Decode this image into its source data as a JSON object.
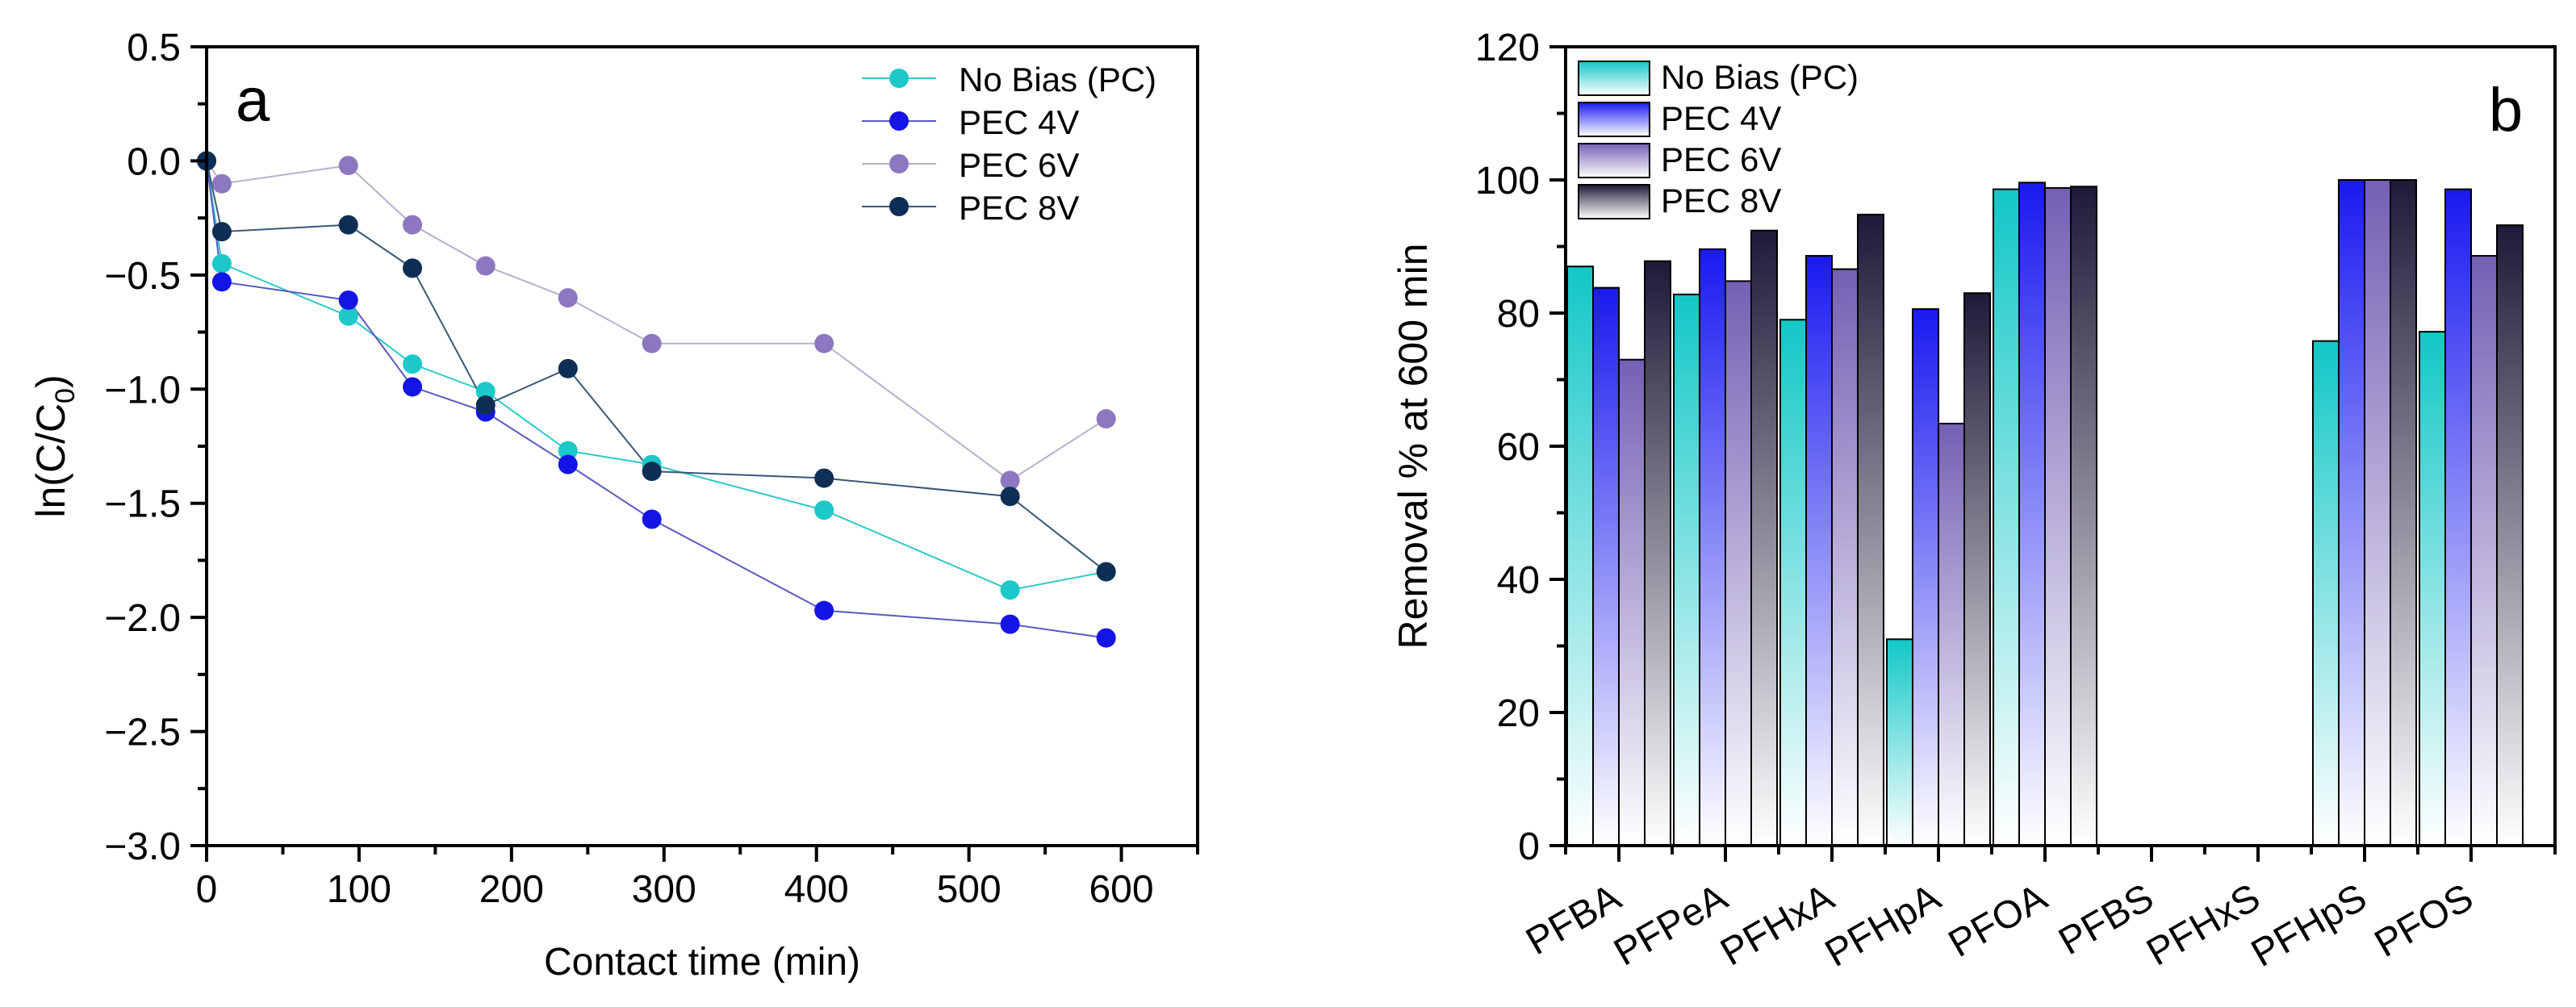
{
  "chart_data": [
    {
      "type": "line",
      "panel_label": "a",
      "title": "",
      "xlabel": "Contact time (min)",
      "ylabel": {
        "main": "ln(C/C",
        "sub": "0",
        "close": ")"
      },
      "xlim": [
        0,
        650
      ],
      "ylim": [
        -3.0,
        0.5
      ],
      "xticks": [
        0,
        100,
        200,
        300,
        400,
        500,
        600
      ],
      "xtick_labels": [
        "0",
        "100",
        "200",
        "300",
        "400",
        "500",
        "600"
      ],
      "yticks": [
        0.5,
        0.0,
        -0.5,
        -1.0,
        -1.5,
        -2.0,
        -2.5,
        -3.0
      ],
      "ytick_labels": [
        "0.5",
        "0.0",
        "−0.5",
        "−1.0",
        "−1.5",
        "−2.0",
        "−2.5",
        "−3.0"
      ],
      "legend_position": "top-right",
      "series": [
        {
          "name": "No Bias (PC)",
          "color": "#1CC8C8",
          "line_color": "#2EC9C9",
          "x": [
            0,
            10,
            93,
            135,
            183,
            237,
            292,
            405,
            527,
            590
          ],
          "y": [
            0.0,
            -0.45,
            -0.68,
            -0.89,
            -1.01,
            -1.27,
            -1.33,
            -1.53,
            -1.88,
            -1.8
          ]
        },
        {
          "name": "PEC 4V",
          "color": "#1414E6",
          "line_color": "#5A5ABF",
          "x": [
            0,
            10,
            93,
            135,
            183,
            237,
            292,
            405,
            527,
            590
          ],
          "y": [
            0.0,
            -0.53,
            -0.61,
            -0.99,
            -1.1,
            -1.33,
            -1.57,
            -1.97,
            -2.03,
            -2.09
          ]
        },
        {
          "name": "PEC 6V",
          "color": "#8C78C0",
          "line_color": "#B8AFCF",
          "x": [
            0,
            10,
            93,
            135,
            183,
            237,
            292,
            405,
            527,
            590
          ],
          "y": [
            0.0,
            -0.1,
            -0.02,
            -0.28,
            -0.46,
            -0.6,
            -0.8,
            -0.8,
            -1.4,
            -1.13
          ]
        },
        {
          "name": "PEC 8V",
          "color": "#0E2E56",
          "line_color": "#3B5775",
          "x": [
            0,
            10,
            93,
            135,
            183,
            237,
            292,
            405,
            527,
            590
          ],
          "y": [
            0.0,
            -0.31,
            -0.28,
            -0.47,
            -1.07,
            -0.91,
            -1.36,
            -1.39,
            -1.47,
            -1.8
          ]
        }
      ]
    },
    {
      "type": "bar",
      "panel_label": "b",
      "title": "",
      "xlabel": "",
      "ylabel": "Removal % at 600 min",
      "ylim": [
        0,
        120
      ],
      "yticks": [
        0,
        20,
        40,
        60,
        80,
        100,
        120
      ],
      "ytick_labels": [
        "0",
        "20",
        "40",
        "60",
        "80",
        "100",
        "120"
      ],
      "categories": [
        "PFBA",
        "PFPeA",
        "PFHxA",
        "PFHpA",
        "PFOA",
        "PFBS",
        "PFHxS",
        "PFHpS",
        "PFOS"
      ],
      "legend_position": "top-left",
      "series": [
        {
          "name": "No Bias (PC)",
          "color": "#12C7C7",
          "values": [
            87.0,
            82.8,
            79.0,
            31.0,
            98.6,
            null,
            null,
            75.8,
            77.2
          ]
        },
        {
          "name": "PEC 4V",
          "color": "#1A1AF0",
          "values": [
            83.8,
            89.6,
            88.6,
            80.6,
            99.6,
            null,
            null,
            100.0,
            98.6
          ]
        },
        {
          "name": "PEC 6V",
          "color": "#7460B4",
          "values": [
            73.0,
            84.8,
            86.6,
            63.4,
            98.8,
            null,
            null,
            100.0,
            88.6
          ]
        },
        {
          "name": "PEC 8V",
          "color": "#1E1A38",
          "values": [
            87.8,
            92.4,
            94.8,
            83.0,
            99.0,
            null,
            null,
            100.0,
            93.2
          ]
        }
      ]
    }
  ]
}
